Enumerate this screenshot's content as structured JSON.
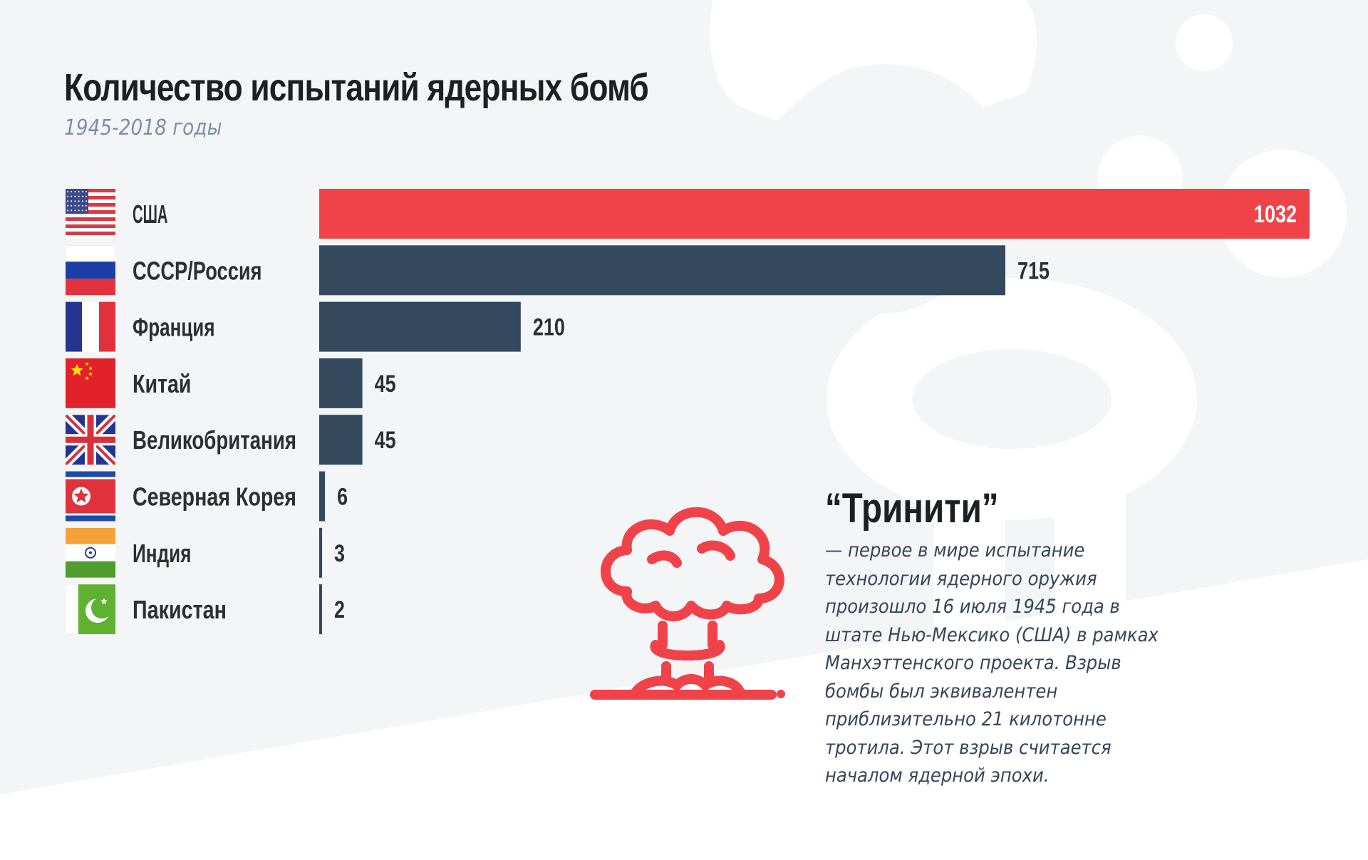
{
  "title": "Количество испытаний ядерных бомб",
  "subtitle": "1945-2018 годы",
  "colors": {
    "highlight": "#f04349",
    "bar": "#34495e",
    "mushroom": "#f04349",
    "background_light": "#f4f5f7"
  },
  "chart_data": {
    "type": "bar",
    "orientation": "horizontal",
    "title": "Количество испытаний ядерных бомб",
    "subtitle": "1945-2018 годы",
    "categories": [
      "США",
      "СССР/Россия",
      "Франция",
      "Китай",
      "Великобритания",
      "Северная Корея",
      "Индия",
      "Пакистан"
    ],
    "values": [
      1032,
      715,
      210,
      45,
      45,
      6,
      3,
      2
    ],
    "value_labels": [
      "1032",
      "715",
      "210",
      "45",
      "45",
      "6",
      "3",
      "2"
    ],
    "highlight_index": 0,
    "flag_icons": [
      "flag-usa-icon",
      "flag-russia-icon",
      "flag-france-icon",
      "flag-china-icon",
      "flag-uk-icon",
      "flag-north-korea-icon",
      "flag-india-icon",
      "flag-pakistan-icon"
    ],
    "xlim": [
      0,
      1032
    ],
    "grid": false,
    "legend": "none"
  },
  "note": {
    "icon": "mushroom-cloud-icon",
    "title": "“Тринити”",
    "lines": [
      "— первое в мире испытание",
      "технологии ядерного оружия",
      "произошло 16 июля 1945 года в",
      "штате Нью-Мексико (США) в рамках",
      "Манхэттенского проекта. Взрыв",
      "бомбы был эквивалентен",
      "приблизительно 21 килотонне",
      "тротила. Этот взрыв считается",
      "началом ядерной эпохи."
    ]
  }
}
